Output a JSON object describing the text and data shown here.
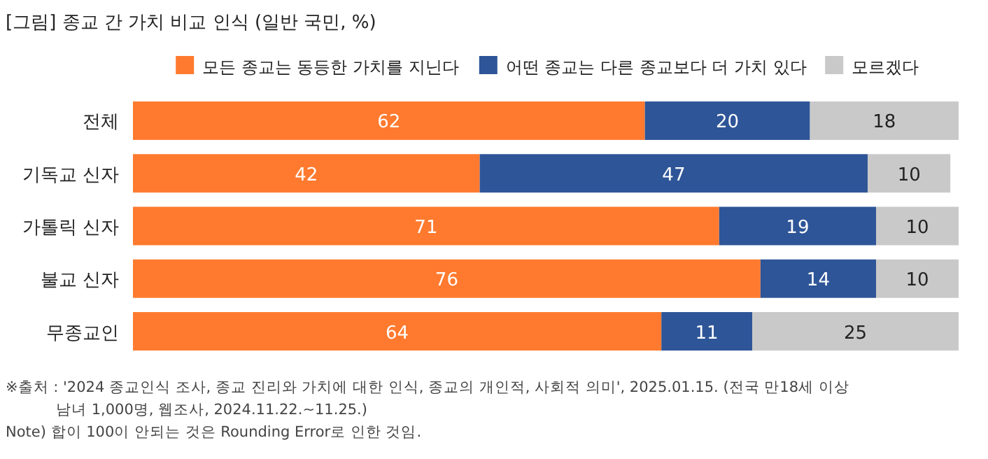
{
  "chart_data": {
    "type": "bar",
    "orientation": "horizontal",
    "stacked": true,
    "title": "[그림] 종교 간 가치 비교 인식 (일반 국민, %)",
    "categories": [
      "전체",
      "기독교 신자",
      "가톨릭 신자",
      "불교 신자",
      "무종교인"
    ],
    "series": [
      {
        "name": "모든 종교는 동등한 가치를 지닌다",
        "color": "#ff7a2f",
        "values": [
          62,
          42,
          71,
          76,
          64
        ]
      },
      {
        "name": "어떤 종교는 다른 종교보다 더 가치 있다",
        "color": "#2e5597",
        "values": [
          20,
          47,
          19,
          14,
          11
        ]
      },
      {
        "name": "모르겠다",
        "color": "#c9c9c9",
        "values": [
          18,
          10,
          10,
          10,
          25
        ]
      }
    ],
    "xlim": [
      0,
      100
    ],
    "data_labels": true,
    "legend": "top",
    "grid": false,
    "annotations": [
      "※출처 : '2024 종교인식 조사, 종교 진리와 가치에 대한 인식, 종교의 개인적, 사회적 의미', 2025.01.15. (전국 만18세 이상",
      "남녀 1,000명, 웹조사,  2024.11.22.~11.25.)",
      "Note) 합이 100이 안되는 것은 Rounding Error로 인한 것임."
    ]
  }
}
